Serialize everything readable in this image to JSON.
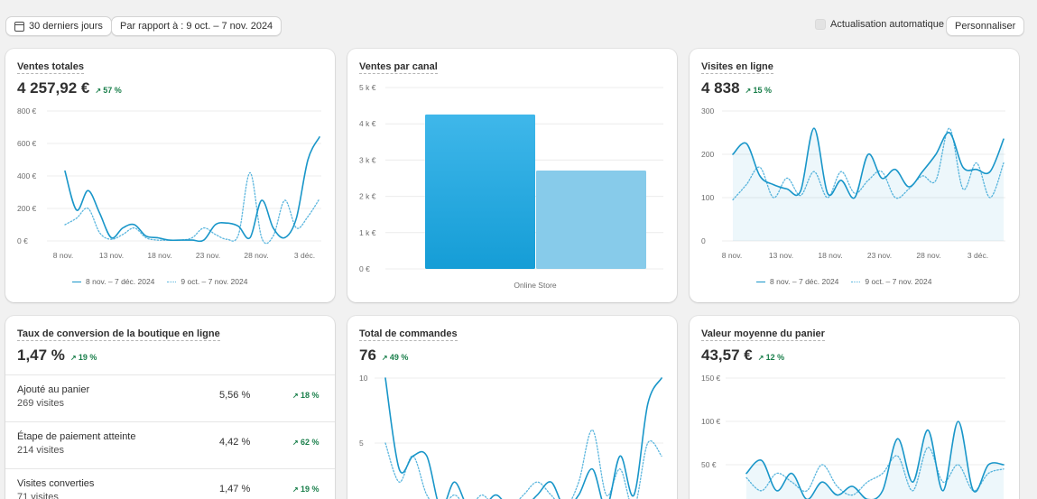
{
  "toolbar": {
    "date_range": "30 derniers jours",
    "compare": "Par rapport à : 9 oct. – 7 nov. 2024",
    "auto_refresh": "Actualisation automatique",
    "customize": "Personnaliser"
  },
  "colors": {
    "primary": "#1996c9",
    "compare": "#5bb6de",
    "positive": "#1a7f4b",
    "bar_secondary": "#87cbea"
  },
  "cards": {
    "sales": {
      "title": "Ventes totales",
      "value": "4 257,92 €",
      "change": "57 %",
      "y_ticks": [
        "800 €",
        "600 €",
        "400 €",
        "200 €",
        "0 €"
      ],
      "x_ticks": [
        "8 nov.",
        "13 nov.",
        "18 nov.",
        "23 nov.",
        "28 nov.",
        "3 déc."
      ],
      "legend": [
        "8 nov. – 7 déc. 2024",
        "9 oct. – 7 nov. 2024"
      ]
    },
    "channel": {
      "title": "Ventes par canal",
      "y_ticks": [
        "5 k €",
        "4 k €",
        "3 k €",
        "2 k €",
        "1 k €",
        "0 €"
      ],
      "category": "Online Store"
    },
    "visits": {
      "title": "Visites en ligne",
      "value": "4 838",
      "change": "15 %",
      "y_ticks": [
        "300",
        "200",
        "100",
        "0"
      ],
      "x_ticks": [
        "8 nov.",
        "13 nov.",
        "18 nov.",
        "23 nov.",
        "28 nov.",
        "3 déc."
      ],
      "legend": [
        "8 nov. – 7 déc. 2024",
        "9 oct. – 7 nov. 2024"
      ]
    },
    "conversion": {
      "title": "Taux de conversion de la boutique en ligne",
      "value": "1,47 %",
      "change": "19 %",
      "rows": [
        {
          "label": "Ajouté au panier",
          "sub": "269 visites",
          "pct": "5,56 %",
          "change": "18 %"
        },
        {
          "label": "Étape de paiement atteinte",
          "sub": "214 visites",
          "pct": "4,42 %",
          "change": "62 %"
        },
        {
          "label": "Visites converties",
          "sub": "71 visites",
          "pct": "1,47 %",
          "change": "19 %"
        }
      ]
    },
    "orders": {
      "title": "Total de commandes",
      "value": "76",
      "change": "49 %",
      "y_ticks": [
        "10",
        "5"
      ]
    },
    "aov": {
      "title": "Valeur moyenne du panier",
      "value": "43,57 €",
      "change": "12 %",
      "y_ticks": [
        "150 €",
        "100 €",
        "50 €"
      ]
    }
  },
  "chart_data": [
    {
      "type": "line",
      "title": "Ventes totales",
      "x_ticks": [
        "8 nov.",
        "13 nov.",
        "18 nov.",
        "23 nov.",
        "28 nov.",
        "3 déc."
      ],
      "ylim": [
        0,
        800
      ],
      "series": [
        {
          "name": "8 nov. – 7 déc. 2024",
          "values": [
            430,
            190,
            310,
            170,
            20,
            80,
            100,
            30,
            20,
            5,
            5,
            5,
            5,
            100,
            110,
            90,
            20,
            250,
            80,
            20,
            140,
            500,
            640
          ]
        },
        {
          "name": "9 oct. – 7 nov. 2024",
          "values": [
            100,
            140,
            200,
            50,
            10,
            40,
            80,
            20,
            5,
            5,
            5,
            20,
            80,
            40,
            10,
            40,
            420,
            20,
            30,
            250,
            80,
            150,
            260
          ]
        }
      ]
    },
    {
      "type": "bar",
      "title": "Ventes par canal",
      "categories": [
        "Online Store"
      ],
      "ylim": [
        0,
        5000
      ],
      "series": [
        {
          "name": "8 nov. – 7 déc. 2024",
          "values": [
            4258
          ]
        },
        {
          "name": "9 oct. – 7 nov. 2024",
          "values": [
            2710
          ]
        }
      ]
    },
    {
      "type": "line",
      "title": "Visites en ligne",
      "x_ticks": [
        "8 nov.",
        "13 nov.",
        "18 nov.",
        "23 nov.",
        "28 nov.",
        "3 déc."
      ],
      "ylim": [
        0,
        300
      ],
      "series": [
        {
          "name": "8 nov. – 7 déc. 2024",
          "values": [
            200,
            225,
            150,
            130,
            120,
            115,
            260,
            110,
            140,
            100,
            200,
            145,
            165,
            125,
            160,
            200,
            250,
            170,
            165,
            160,
            235
          ]
        },
        {
          "name": "9 oct. – 7 nov. 2024",
          "values": [
            95,
            130,
            170,
            100,
            145,
            105,
            160,
            100,
            160,
            110,
            140,
            160,
            100,
            120,
            150,
            140,
            260,
            120,
            180,
            100,
            180
          ]
        }
      ]
    },
    {
      "type": "line",
      "title": "Total de commandes",
      "ylim": [
        0,
        10
      ],
      "series": [
        {
          "name": "8 nov. – 7 déc. 2024",
          "values": [
            10,
            3,
            4,
            4,
            0,
            2,
            0,
            0,
            1,
            0,
            0,
            1,
            2,
            0,
            1,
            3,
            0,
            4,
            1,
            8,
            10
          ]
        },
        {
          "name": "9 oct. – 7 nov. 2024",
          "values": [
            5,
            2,
            4,
            1,
            0,
            1,
            0,
            1,
            0,
            0,
            1,
            2,
            1,
            0,
            2,
            6,
            1,
            3,
            0,
            5,
            4
          ]
        }
      ]
    },
    {
      "type": "line",
      "title": "Valeur moyenne du panier",
      "ylim": [
        0,
        150
      ],
      "series": [
        {
          "name": "8 nov. – 7 déc. 2024",
          "values": [
            40,
            55,
            20,
            40,
            10,
            30,
            15,
            25,
            10,
            20,
            80,
            30,
            90,
            20,
            100,
            20,
            50,
            50
          ]
        },
        {
          "name": "9 oct. – 7 nov. 2024",
          "values": [
            35,
            20,
            40,
            30,
            20,
            50,
            25,
            15,
            30,
            40,
            60,
            20,
            70,
            30,
            50,
            20,
            40,
            45
          ]
        }
      ]
    }
  ]
}
